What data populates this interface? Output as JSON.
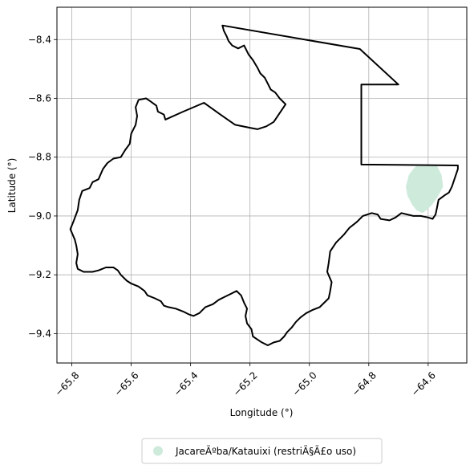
{
  "chart_data": {
    "type": "map",
    "xlabel": "Longitude (°)",
    "ylabel": "Latitude (°)",
    "xlim": [
      -65.85,
      -64.47
    ],
    "ylim": [
      -9.5,
      -8.29
    ],
    "xticks": [
      -65.8,
      -65.6,
      -65.4,
      -65.2,
      -65.0,
      -64.8,
      -64.6
    ],
    "xtick_labels": [
      "−65.8",
      "−65.6",
      "−65.4",
      "−65.2",
      "−65.0",
      "−64.8",
      "−64.6"
    ],
    "yticks": [
      -8.4,
      -8.6,
      -8.8,
      -9.0,
      -9.2,
      -9.4
    ],
    "ytick_labels": [
      "−8.4",
      "−8.6",
      "−8.8",
      "−9.0",
      "−9.2",
      "−9.4"
    ],
    "grid": true,
    "legend_placement": "bottom-center",
    "series": [
      {
        "name": "JacareÃºba/Katauixi (restriÃ§Ã£o uso)",
        "kind": "filled-area",
        "color": "#cdeadb",
        "polygon": [
          [
            -64.64,
            -8.83
          ],
          [
            -64.57,
            -8.83
          ],
          [
            -64.555,
            -8.86
          ],
          [
            -64.55,
            -8.9
          ],
          [
            -64.565,
            -8.93
          ],
          [
            -64.585,
            -8.96
          ],
          [
            -64.605,
            -8.98
          ],
          [
            -64.62,
            -8.99
          ],
          [
            -64.64,
            -8.98
          ],
          [
            -64.655,
            -8.96
          ],
          [
            -64.67,
            -8.93
          ],
          [
            -64.675,
            -8.9
          ],
          [
            -64.665,
            -8.86
          ],
          [
            -64.65,
            -8.84
          ]
        ]
      },
      {
        "kind": "outline",
        "color": "#000000",
        "polygon": [
          [
            -65.293,
            -8.352
          ],
          [
            -65.288,
            -8.37
          ],
          [
            -65.278,
            -8.39
          ],
          [
            -65.272,
            -8.405
          ],
          [
            -65.26,
            -8.42
          ],
          [
            -65.24,
            -8.43
          ],
          [
            -65.22,
            -8.42
          ],
          [
            -65.205,
            -8.45
          ],
          [
            -65.19,
            -8.47
          ],
          [
            -65.175,
            -8.495
          ],
          [
            -65.165,
            -8.515
          ],
          [
            -65.15,
            -8.53
          ],
          [
            -65.14,
            -8.55
          ],
          [
            -65.13,
            -8.57
          ],
          [
            -65.115,
            -8.58
          ],
          [
            -65.1,
            -8.6
          ],
          [
            -65.08,
            -8.62
          ],
          [
            -65.1,
            -8.65
          ],
          [
            -65.12,
            -8.68
          ],
          [
            -65.145,
            -8.695
          ],
          [
            -65.175,
            -8.705
          ],
          [
            -65.2,
            -8.7
          ],
          [
            -65.25,
            -8.69
          ],
          [
            -65.3,
            -8.655
          ],
          [
            -65.355,
            -8.615
          ],
          [
            -65.425,
            -8.645
          ],
          [
            -65.485,
            -8.672
          ],
          [
            -65.49,
            -8.655
          ],
          [
            -65.51,
            -8.645
          ],
          [
            -65.515,
            -8.625
          ],
          [
            -65.535,
            -8.61
          ],
          [
            -65.55,
            -8.6
          ],
          [
            -65.575,
            -8.605
          ],
          [
            -65.585,
            -8.63
          ],
          [
            -65.58,
            -8.66
          ],
          [
            -65.585,
            -8.69
          ],
          [
            -65.6,
            -8.72
          ],
          [
            -65.605,
            -8.755
          ],
          [
            -65.62,
            -8.775
          ],
          [
            -65.635,
            -8.8
          ],
          [
            -65.66,
            -8.805
          ],
          [
            -65.68,
            -8.82
          ],
          [
            -65.695,
            -8.84
          ],
          [
            -65.71,
            -8.875
          ],
          [
            -65.73,
            -8.885
          ],
          [
            -65.74,
            -8.905
          ],
          [
            -65.765,
            -8.915
          ],
          [
            -65.775,
            -8.945
          ],
          [
            -65.78,
            -8.98
          ],
          [
            -65.795,
            -9.02
          ],
          [
            -65.805,
            -9.045
          ],
          [
            -65.79,
            -9.08
          ],
          [
            -65.785,
            -9.1
          ],
          [
            -65.78,
            -9.13
          ],
          [
            -65.785,
            -9.16
          ],
          [
            -65.78,
            -9.18
          ],
          [
            -65.76,
            -9.19
          ],
          [
            -65.73,
            -9.19
          ],
          [
            -65.71,
            -9.185
          ],
          [
            -65.685,
            -9.175
          ],
          [
            -65.66,
            -9.175
          ],
          [
            -65.645,
            -9.185
          ],
          [
            -65.635,
            -9.2
          ],
          [
            -65.615,
            -9.22
          ],
          [
            -65.6,
            -9.23
          ],
          [
            -65.575,
            -9.24
          ],
          [
            -65.555,
            -9.255
          ],
          [
            -65.545,
            -9.27
          ],
          [
            -65.52,
            -9.28
          ],
          [
            -65.5,
            -9.29
          ],
          [
            -65.49,
            -9.305
          ],
          [
            -65.475,
            -9.31
          ],
          [
            -65.45,
            -9.315
          ],
          [
            -65.425,
            -9.325
          ],
          [
            -65.405,
            -9.335
          ],
          [
            -65.39,
            -9.34
          ],
          [
            -65.37,
            -9.33
          ],
          [
            -65.35,
            -9.31
          ],
          [
            -65.325,
            -9.3
          ],
          [
            -65.305,
            -9.285
          ],
          [
            -65.285,
            -9.275
          ],
          [
            -65.265,
            -9.265
          ],
          [
            -65.245,
            -9.255
          ],
          [
            -65.23,
            -9.27
          ],
          [
            -65.22,
            -9.295
          ],
          [
            -65.21,
            -9.315
          ],
          [
            -65.215,
            -9.34
          ],
          [
            -65.21,
            -9.365
          ],
          [
            -65.195,
            -9.385
          ],
          [
            -65.19,
            -9.41
          ],
          [
            -65.175,
            -9.42
          ],
          [
            -65.16,
            -9.43
          ],
          [
            -65.14,
            -9.44
          ],
          [
            -65.12,
            -9.43
          ],
          [
            -65.1,
            -9.425
          ],
          [
            -65.085,
            -9.41
          ],
          [
            -65.075,
            -9.395
          ],
          [
            -65.06,
            -9.38
          ],
          [
            -65.045,
            -9.36
          ],
          [
            -65.03,
            -9.345
          ],
          [
            -65.01,
            -9.33
          ],
          [
            -64.99,
            -9.32
          ],
          [
            -64.965,
            -9.31
          ],
          [
            -64.95,
            -9.295
          ],
          [
            -64.935,
            -9.28
          ],
          [
            -64.93,
            -9.255
          ],
          [
            -64.925,
            -9.225
          ],
          [
            -64.94,
            -9.19
          ],
          [
            -64.935,
            -9.16
          ],
          [
            -64.93,
            -9.12
          ],
          [
            -64.91,
            -9.09
          ],
          [
            -64.885,
            -9.065
          ],
          [
            -64.865,
            -9.04
          ],
          [
            -64.84,
            -9.02
          ],
          [
            -64.82,
            -9.0
          ],
          [
            -64.79,
            -8.99
          ],
          [
            -64.77,
            -8.995
          ],
          [
            -64.76,
            -9.01
          ],
          [
            -64.73,
            -9.015
          ],
          [
            -64.71,
            -9.005
          ],
          [
            -64.69,
            -8.99
          ],
          [
            -64.67,
            -8.995
          ],
          [
            -64.65,
            -9.0
          ],
          [
            -64.625,
            -9.0
          ],
          [
            -64.6,
            -9.005
          ],
          [
            -64.585,
            -9.01
          ],
          [
            -64.575,
            -8.995
          ],
          [
            -64.57,
            -8.97
          ],
          [
            -64.565,
            -8.945
          ],
          [
            -64.545,
            -8.93
          ],
          [
            -64.53,
            -8.92
          ],
          [
            -64.52,
            -8.9
          ],
          [
            -64.51,
            -8.87
          ],
          [
            -64.5,
            -8.84
          ],
          [
            -64.5,
            -8.828
          ],
          [
            -64.825,
            -8.825
          ],
          [
            -64.825,
            -8.553
          ],
          [
            -64.7,
            -8.553
          ],
          [
            -64.83,
            -8.432
          ],
          [
            -65.293,
            -8.352
          ]
        ]
      }
    ]
  }
}
